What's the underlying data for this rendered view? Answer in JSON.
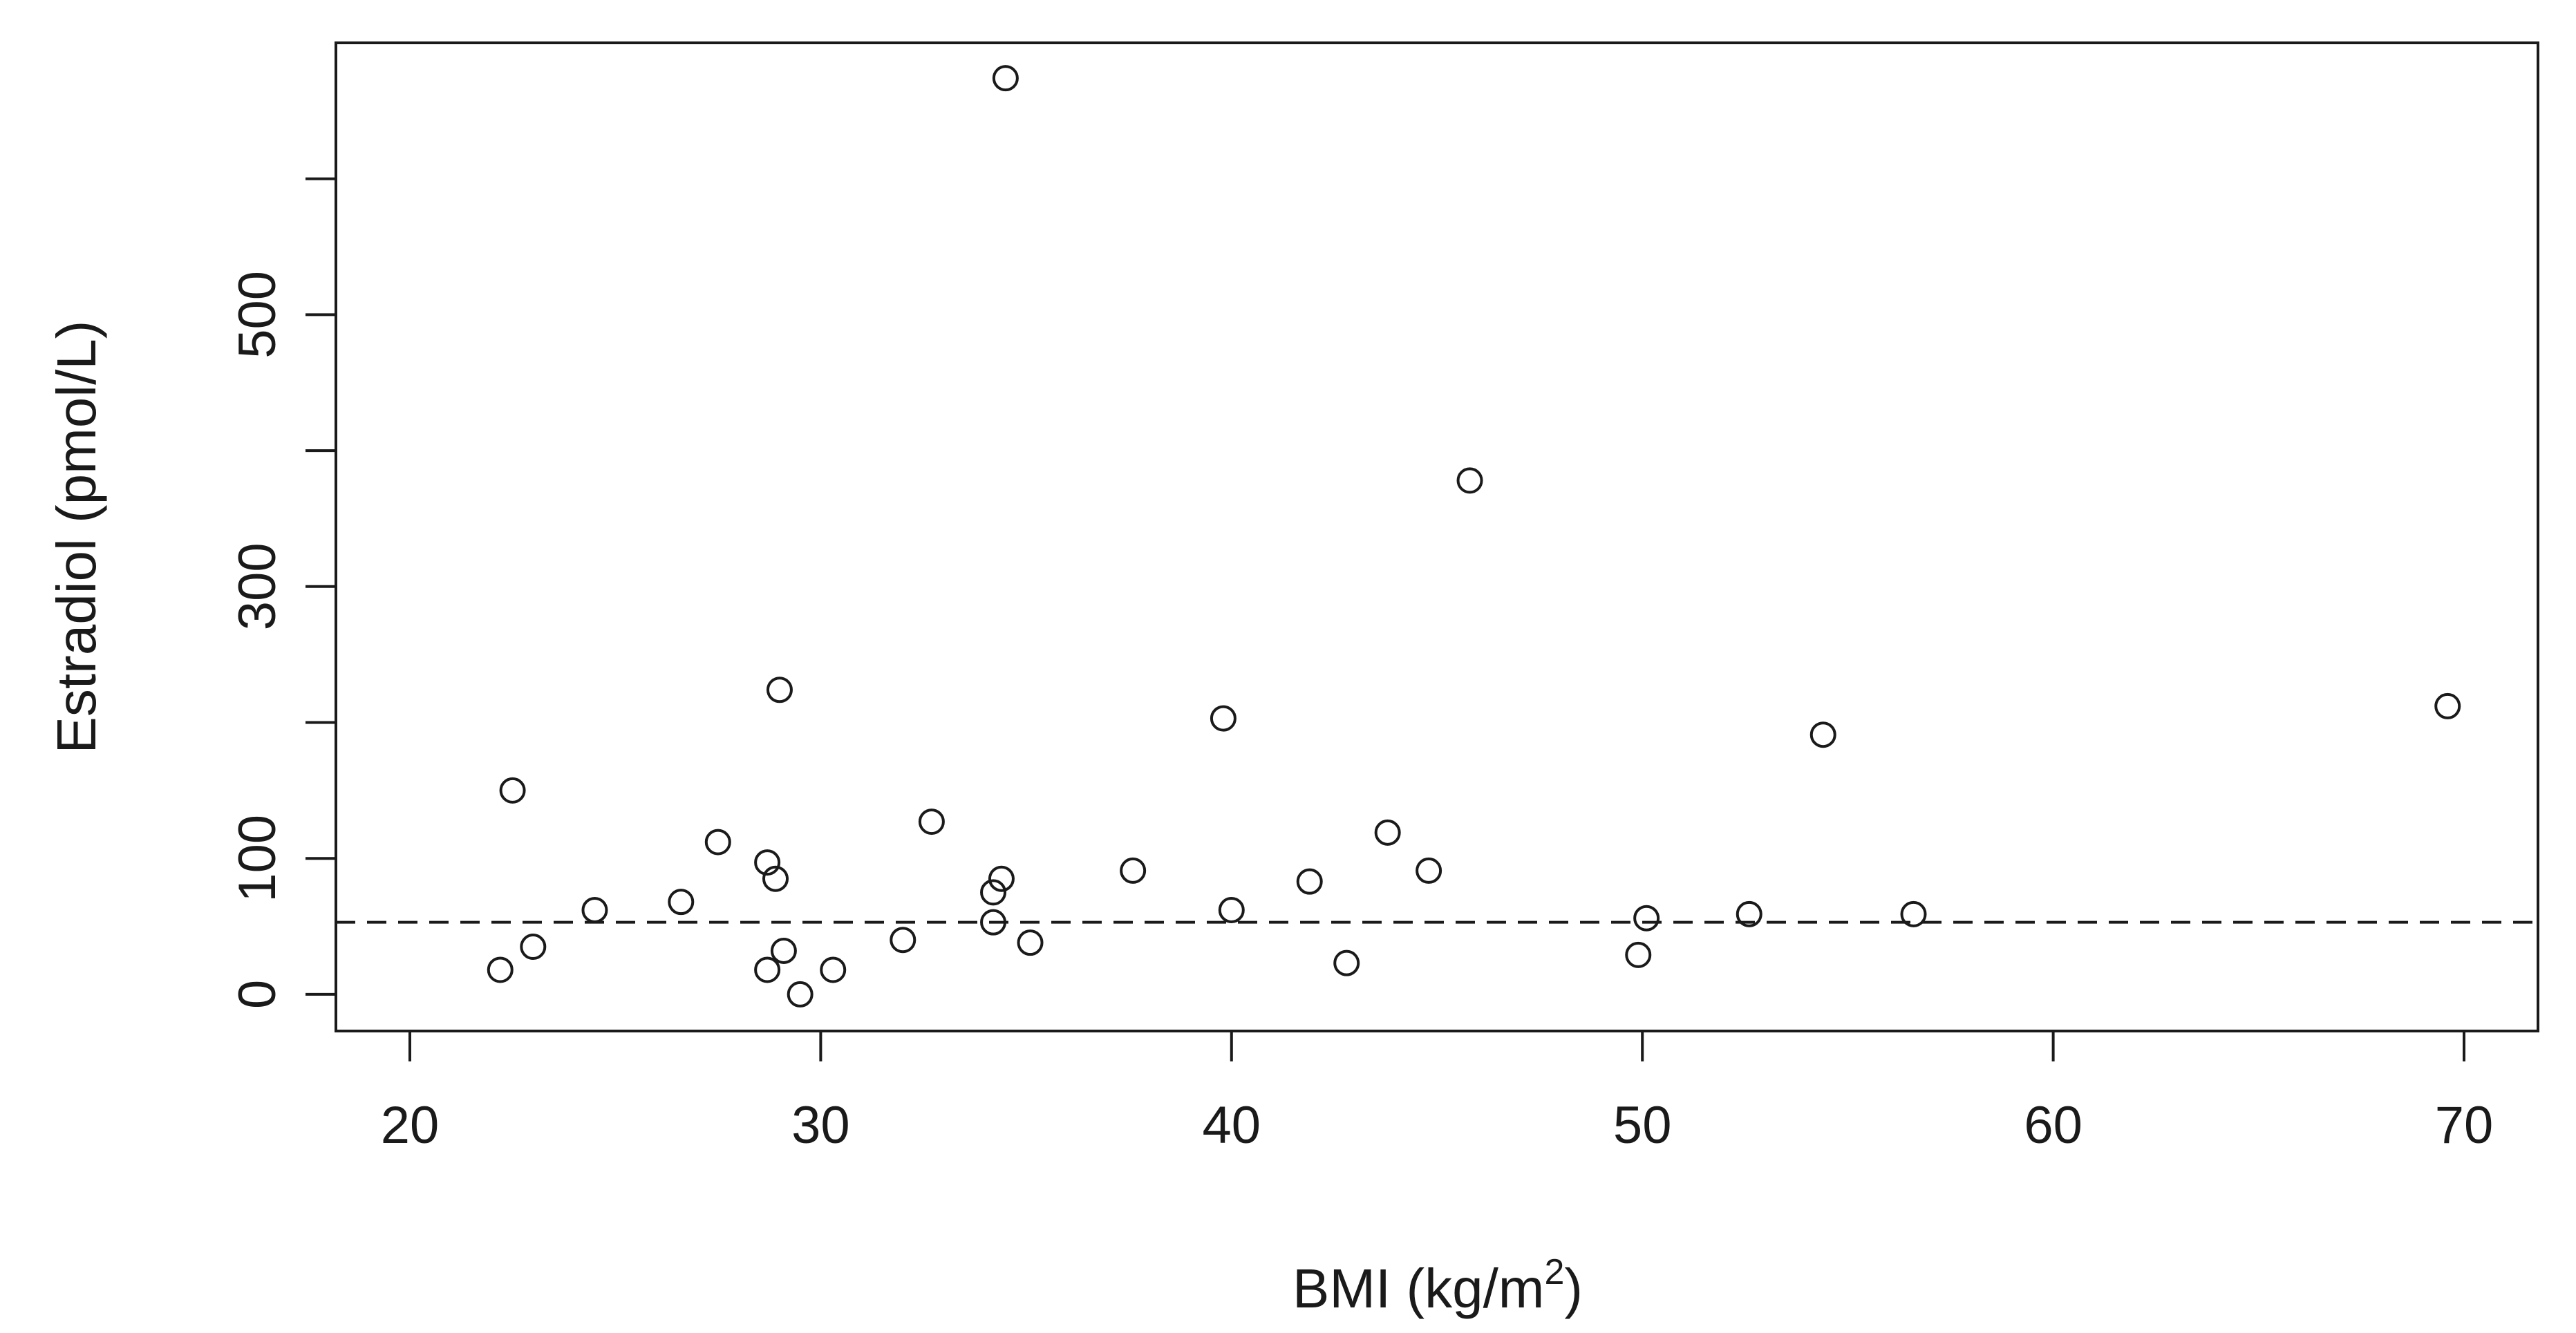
{
  "chart_data": {
    "type": "scatter",
    "xlabel": "BMI (kg/m",
    "xlabel_superscript": "2",
    "xlabel_suffix": ")",
    "ylabel": "Estradiol (pmol/L)",
    "xlim": [
      18.2,
      71.8
    ],
    "ylim": [
      -27,
      700
    ],
    "x_ticks": [
      20,
      30,
      40,
      50,
      60,
      70
    ],
    "y_ticks": [
      0,
      100,
      200,
      300,
      400,
      500,
      600
    ],
    "y_tick_labels": [
      "0",
      "100",
      "",
      "300",
      "",
      "500",
      ""
    ],
    "reference_line": {
      "y": 53,
      "style": "dashed"
    },
    "marker": "open-circle",
    "points": [
      {
        "x": 22.2,
        "y": 18
      },
      {
        "x": 22.5,
        "y": 150
      },
      {
        "x": 23.0,
        "y": 35
      },
      {
        "x": 24.5,
        "y": 62
      },
      {
        "x": 26.6,
        "y": 68
      },
      {
        "x": 27.5,
        "y": 112
      },
      {
        "x": 28.7,
        "y": 97
      },
      {
        "x": 28.7,
        "y": 18
      },
      {
        "x": 28.9,
        "y": 85
      },
      {
        "x": 29.0,
        "y": 224
      },
      {
        "x": 29.1,
        "y": 32
      },
      {
        "x": 29.5,
        "y": 0
      },
      {
        "x": 30.3,
        "y": 18
      },
      {
        "x": 32.0,
        "y": 40
      },
      {
        "x": 32.7,
        "y": 127
      },
      {
        "x": 34.2,
        "y": 53
      },
      {
        "x": 34.2,
        "y": 75
      },
      {
        "x": 34.4,
        "y": 85
      },
      {
        "x": 34.5,
        "y": 674
      },
      {
        "x": 35.1,
        "y": 38
      },
      {
        "x": 37.6,
        "y": 91
      },
      {
        "x": 39.8,
        "y": 203
      },
      {
        "x": 40.0,
        "y": 62
      },
      {
        "x": 41.9,
        "y": 83
      },
      {
        "x": 42.8,
        "y": 23
      },
      {
        "x": 43.8,
        "y": 119
      },
      {
        "x": 44.8,
        "y": 91
      },
      {
        "x": 45.8,
        "y": 378
      },
      {
        "x": 49.9,
        "y": 29
      },
      {
        "x": 50.1,
        "y": 56
      },
      {
        "x": 52.6,
        "y": 59
      },
      {
        "x": 54.4,
        "y": 191
      },
      {
        "x": 56.6,
        "y": 59
      },
      {
        "x": 69.6,
        "y": 212
      }
    ]
  }
}
